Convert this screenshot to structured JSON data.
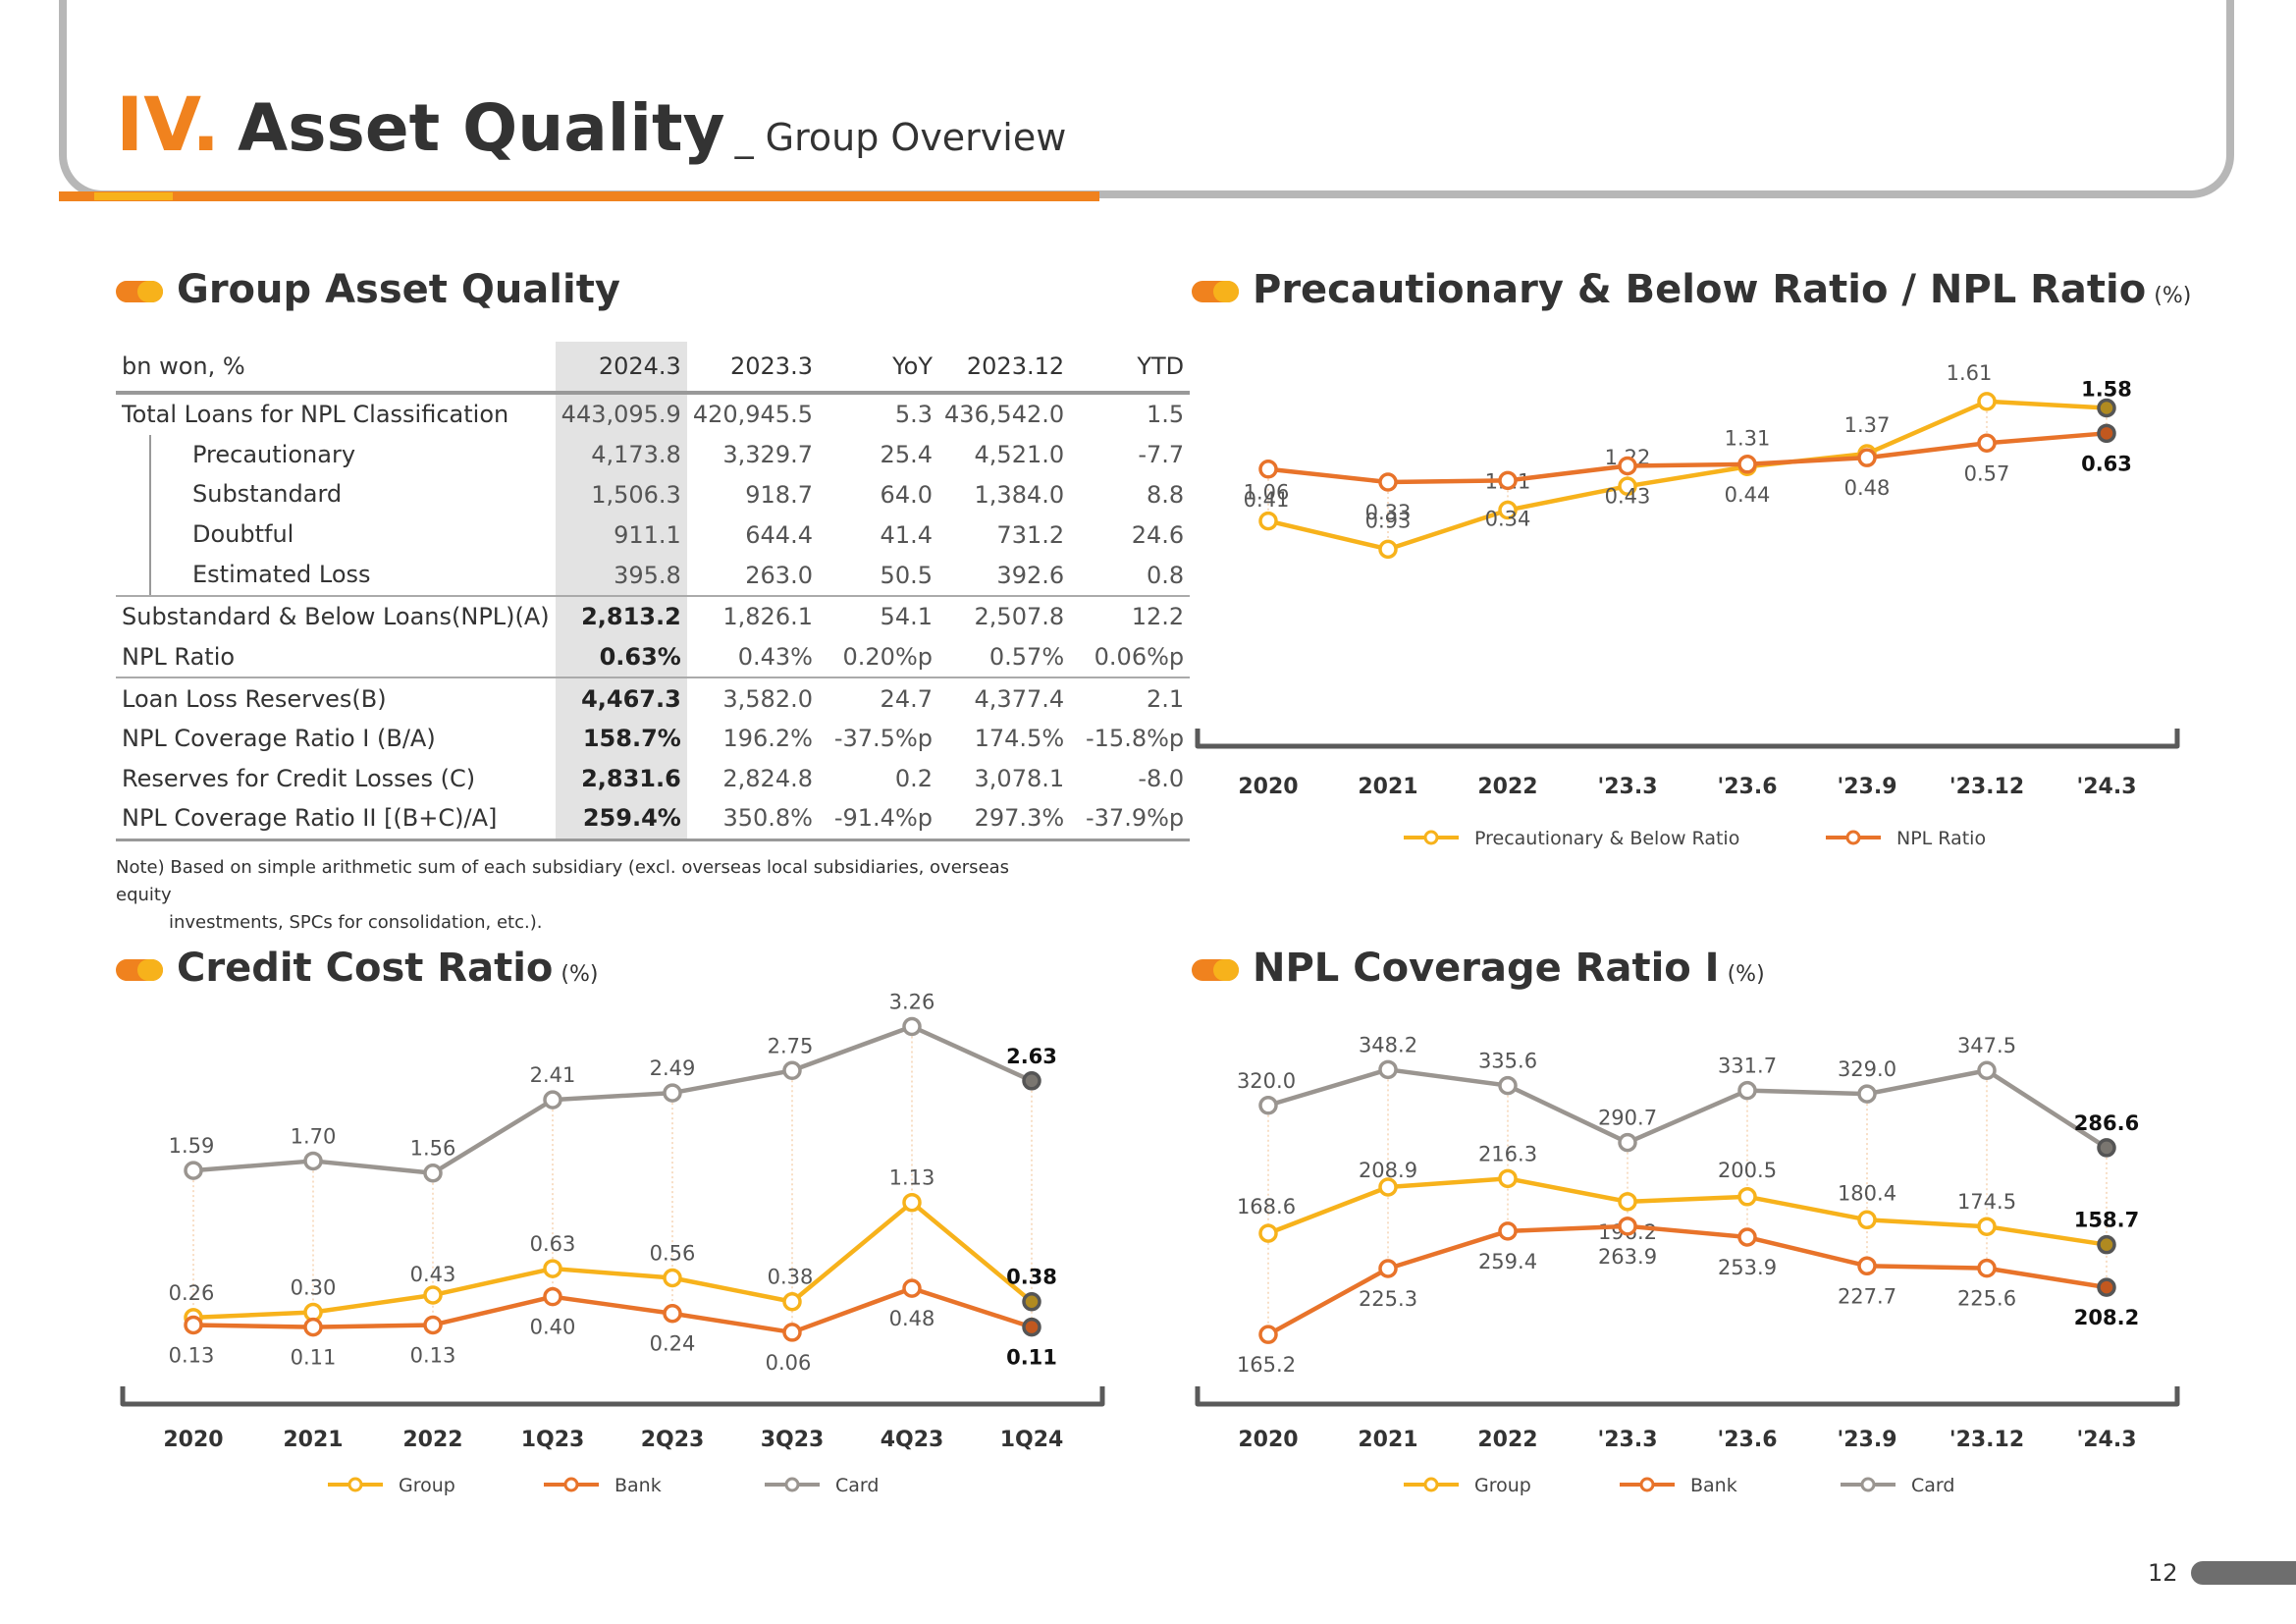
{
  "header": {
    "roman": "IV.",
    "title": "Asset Quality",
    "subtitle": "_ Group Overview"
  },
  "sections": {
    "asset_quality": "Group Asset Quality",
    "ratio": "Precautionary & Below Ratio / NPL Ratio",
    "credit_cost": "Credit Cost Ratio",
    "coverage": "NPL Coverage Ratio I",
    "unit": "(%)"
  },
  "table": {
    "headers": [
      "bn won, %",
      "2024.3",
      "2023.3",
      "YoY",
      "2023.12",
      "YTD"
    ],
    "rows": [
      {
        "label": "Total Loans for NPL Classification",
        "cells": [
          "443,095.9",
          "420,945.5",
          "5.3",
          "436,542.0",
          "1.5"
        ]
      },
      {
        "label": "Precautionary",
        "cells": [
          "4,173.8",
          "3,329.7",
          "25.4",
          "4,521.0",
          "-7.7"
        ]
      },
      {
        "label": "Substandard",
        "cells": [
          "1,506.3",
          "918.7",
          "64.0",
          "1,384.0",
          "8.8"
        ]
      },
      {
        "label": "Doubtful",
        "cells": [
          "911.1",
          "644.4",
          "41.4",
          "731.2",
          "24.6"
        ]
      },
      {
        "label": "Estimated Loss",
        "cells": [
          "395.8",
          "263.0",
          "50.5",
          "392.6",
          "0.8"
        ]
      },
      {
        "label": "Substandard & Below Loans(NPL)(A)",
        "cells": [
          "2,813.2",
          "1,826.1",
          "54.1",
          "2,507.8",
          "12.2"
        ]
      },
      {
        "label": "NPL Ratio",
        "cells": [
          "0.63%",
          "0.43%",
          "0.20%p",
          "0.57%",
          "0.06%p"
        ]
      },
      {
        "label": "Loan Loss Reserves(B)",
        "cells": [
          "4,467.3",
          "3,582.0",
          "24.7",
          "4,377.4",
          "2.1"
        ]
      },
      {
        "label": "NPL Coverage Ratio I (B/A)",
        "cells": [
          "158.7%",
          "196.2%",
          "-37.5%p",
          "174.5%",
          "-15.8%p"
        ]
      },
      {
        "label": "Reserves for Credit Losses (C)",
        "cells": [
          "2,831.6",
          "2,824.8",
          "0.2",
          "3,078.1",
          "-8.0"
        ]
      },
      {
        "label": "NPL Coverage Ratio II [(B+C)/A]",
        "cells": [
          "259.4%",
          "350.8%",
          "-91.4%p",
          "297.3%",
          "-37.9%p"
        ]
      }
    ],
    "note_line1": "Note) Based on simple arithmetic sum of each subsidiary (excl. overseas local subsidiaries, overseas equity",
    "note_line2": "investments, SPCs for consolidation, etc.)."
  },
  "colors": {
    "group": "#f7b21b",
    "bank": "#e8732a",
    "card": "#9a9590",
    "axis": "#5a5a5a"
  },
  "page_number": "12",
  "chart_data": [
    {
      "type": "line",
      "title": "Precautionary & Below Ratio / NPL Ratio",
      "unit": "(%)",
      "categories": [
        "2020",
        "2021",
        "2022",
        "'23.3",
        "'23.6",
        "'23.9",
        "'23.12",
        "'24.3"
      ],
      "series": [
        {
          "name": "Precautionary & Below Ratio",
          "color": "#f7b21b",
          "values": [
            1.06,
            0.93,
            1.11,
            1.22,
            1.31,
            1.37,
            1.61,
            1.58
          ],
          "labels": [
            "1.06",
            "0.93",
            "1.11",
            "1.22",
            "1.31",
            "1.37",
            "1.61",
            "1.58"
          ]
        },
        {
          "name": "NPL Ratio",
          "color": "#e8732a",
          "values": [
            0.41,
            0.33,
            0.34,
            0.43,
            0.44,
            0.48,
            0.57,
            0.63
          ],
          "labels": [
            "0.41",
            "0.33",
            "0.34",
            "0.43",
            "0.44",
            "0.48",
            "0.57",
            "0.63"
          ]
        }
      ],
      "ylim": [
        0.2,
        1.75
      ]
    },
    {
      "type": "line",
      "title": "Credit Cost Ratio",
      "unit": "(%)",
      "categories": [
        "2020",
        "2021",
        "2022",
        "1Q23",
        "2Q23",
        "3Q23",
        "4Q23",
        "1Q24"
      ],
      "series": [
        {
          "name": "Group",
          "color": "#f7b21b",
          "values": [
            0.26,
            0.3,
            0.43,
            0.63,
            0.56,
            0.38,
            1.13,
            0.38
          ],
          "labels": [
            "0.26",
            "0.30",
            "0.43",
            "0.63",
            "0.56",
            "0.38",
            "1.13",
            "0.38"
          ]
        },
        {
          "name": "Bank",
          "color": "#e8732a",
          "values": [
            0.13,
            0.11,
            0.13,
            0.4,
            0.24,
            0.06,
            0.48,
            0.11
          ],
          "labels": [
            "0.13",
            "0.11",
            "0.13",
            "0.40",
            "0.24",
            "0.06",
            "0.48",
            "0.11"
          ]
        },
        {
          "name": "Card",
          "color": "#9a9590",
          "values": [
            1.59,
            1.7,
            1.56,
            2.41,
            2.49,
            2.75,
            3.26,
            2.63
          ],
          "labels": [
            "1.59",
            "1.70",
            "1.56",
            "2.41",
            "2.49",
            "2.75",
            "3.26",
            "2.63"
          ]
        }
      ],
      "ylim": [
        -0.3,
        3.5
      ]
    },
    {
      "type": "line",
      "title": "NPL Coverage Ratio I",
      "unit": "(%)",
      "categories": [
        "2020",
        "2021",
        "2022",
        "'23.3",
        "'23.6",
        "'23.9",
        "'23.12",
        "'24.3"
      ],
      "series": [
        {
          "name": "Group",
          "color": "#f7b21b",
          "values": [
            168.6,
            208.9,
            216.3,
            196.2,
            200.5,
            180.4,
            174.5,
            158.7
          ],
          "labels": [
            "168.6",
            "208.9",
            "216.3",
            "196.2",
            "200.5",
            "180.4",
            "174.5",
            "158.7"
          ]
        },
        {
          "name": "Bank",
          "color": "#e8732a",
          "values": [
            165.2,
            225.3,
            259.4,
            263.9,
            253.9,
            227.7,
            225.6,
            208.2
          ],
          "labels": [
            "165.2",
            "225.3",
            "259.4",
            "263.9",
            "253.9",
            "227.7",
            "225.6",
            "208.2"
          ]
        },
        {
          "name": "Card",
          "color": "#9a9590",
          "values": [
            320.0,
            348.2,
            335.6,
            290.7,
            331.7,
            329.0,
            347.5,
            286.6
          ],
          "labels": [
            "320.0",
            "348.2",
            "335.6",
            "290.7",
            "331.7",
            "329.0",
            "347.5",
            "286.6"
          ]
        }
      ]
    }
  ]
}
